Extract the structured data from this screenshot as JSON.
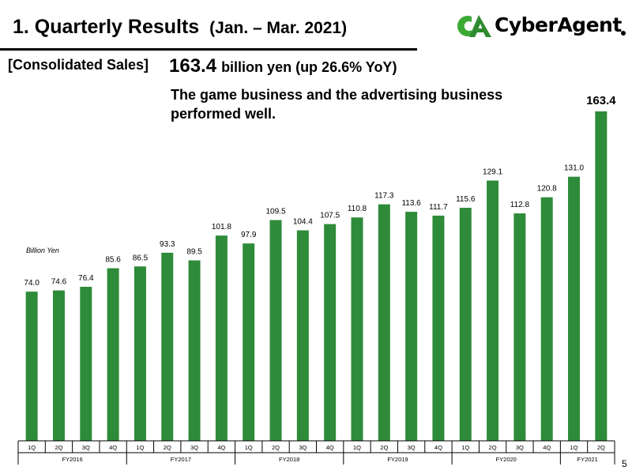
{
  "header": {
    "title": "1.  Quarterly Results",
    "period": "(Jan. – Mar. 2021)",
    "logo_text": "CyberAgent",
    "logo_mark": "CA"
  },
  "summary": {
    "label": "[Consolidated Sales]",
    "value": "163.4",
    "value_suffix": "billion yen (up 26.6% YoY)",
    "note": "The game business and the advertising business performed well."
  },
  "page_number": "5",
  "colors": {
    "bar": "#2e8b3a",
    "logo_green": "#3aaa35",
    "logo_green_dark": "#2e8b2e"
  },
  "chart_data": {
    "type": "bar",
    "unit_label": "Billion Yen",
    "categories": [
      "1Q",
      "2Q",
      "3Q",
      "4Q",
      "1Q",
      "2Q",
      "3Q",
      "4Q",
      "1Q",
      "2Q",
      "3Q",
      "4Q",
      "1Q",
      "2Q",
      "3Q",
      "4Q",
      "1Q",
      "2Q",
      "3Q",
      "4Q",
      "1Q",
      "2Q"
    ],
    "values": [
      74.0,
      74.6,
      76.4,
      85.6,
      86.5,
      93.3,
      89.5,
      101.8,
      97.9,
      109.5,
      104.4,
      107.5,
      110.8,
      117.3,
      113.6,
      111.7,
      115.6,
      129.1,
      112.8,
      120.8,
      131.0,
      163.4
    ],
    "value_labels": [
      "74.0",
      "74.6",
      "76.4",
      "85.6",
      "86.5",
      "93.3",
      "89.5",
      "101.8",
      "97.9",
      "109.5",
      "104.4",
      "107.5",
      "110.8",
      "117.3",
      "113.6",
      "111.7",
      "115.6",
      "129.1",
      "112.8",
      "120.8",
      "131.0",
      "163.4"
    ],
    "groups": [
      {
        "label": "FY2016",
        "count": 4
      },
      {
        "label": "FY2017",
        "count": 4
      },
      {
        "label": "FY2018",
        "count": 4
      },
      {
        "label": "FY2019",
        "count": 4
      },
      {
        "label": "FY2020",
        "count": 4
      },
      {
        "label": "FY2021",
        "count": 2
      }
    ],
    "ylim": [
      0,
      170
    ],
    "grid": false,
    "highlight_last": true
  }
}
